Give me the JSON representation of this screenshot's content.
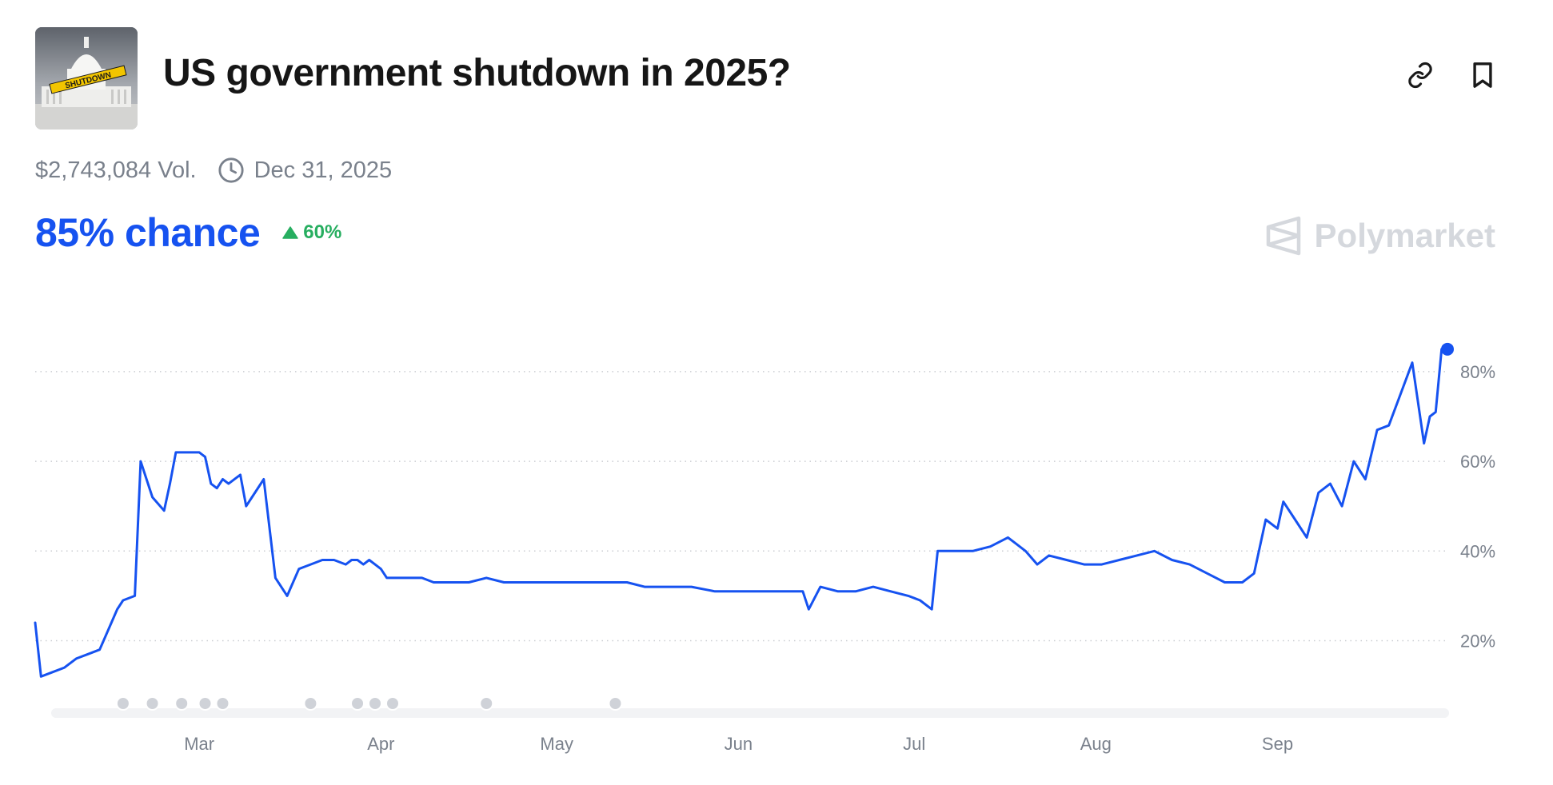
{
  "market": {
    "title": "US government shutdown in 2025?",
    "volume": "$2,743,084 Vol.",
    "end_date": "Dec 31, 2025",
    "chance": "85% chance",
    "change": "60%",
    "brand": "Polymarket",
    "thumbnail_banner": "SHUTDOWN"
  },
  "icons": {
    "link": "link-icon",
    "bookmark": "bookmark-icon",
    "clock": "clock-icon",
    "delta": "triangle-up-icon",
    "brand": "polymarket-logo-icon"
  },
  "colors": {
    "line": "#1652f0",
    "chance": "#1652f0",
    "positive": "#27ae60",
    "muted": "#7a818c",
    "marker": "#cfd2d8"
  },
  "chart_data": {
    "type": "line",
    "title": "",
    "xlabel": "",
    "ylabel": "",
    "x_tick_labels": [
      "Mar",
      "Apr",
      "May",
      "Jun",
      "Jul",
      "Aug",
      "Sep"
    ],
    "y_tick_labels": [
      "20%",
      "40%",
      "60%",
      "80%"
    ],
    "y_ticks": [
      20,
      40,
      60,
      80
    ],
    "ylim": [
      6,
      88
    ],
    "xlim": [
      "2025-02-01",
      "2025-09-30"
    ],
    "grid": "horizontal-dotted",
    "x_tick_dates": [
      "2025-03-01",
      "2025-04-01",
      "2025-05-01",
      "2025-06-01",
      "2025-07-01",
      "2025-08-01",
      "2025-09-01"
    ],
    "event_markers": [
      "2025-02-16",
      "2025-02-21",
      "2025-02-26",
      "2025-03-02",
      "2025-03-05",
      "2025-03-20",
      "2025-03-28",
      "2025-03-31",
      "2025-04-03",
      "2025-04-19",
      "2025-05-11"
    ],
    "series": [
      {
        "x": [
          "2025-02-01",
          "2025-02-02",
          "2025-02-04",
          "2025-02-06",
          "2025-02-08",
          "2025-02-10",
          "2025-02-12",
          "2025-02-14",
          "2025-02-15",
          "2025-02-16",
          "2025-02-18",
          "2025-02-19",
          "2025-02-21",
          "2025-02-23",
          "2025-02-24",
          "2025-02-25",
          "2025-02-26",
          "2025-02-27",
          "2025-02-28",
          "2025-03-01",
          "2025-03-02",
          "2025-03-03",
          "2025-03-04",
          "2025-03-05",
          "2025-03-06",
          "2025-03-08",
          "2025-03-09",
          "2025-03-10",
          "2025-03-12",
          "2025-03-14",
          "2025-03-16",
          "2025-03-18",
          "2025-03-20",
          "2025-03-22",
          "2025-03-24",
          "2025-03-26",
          "2025-03-27",
          "2025-03-28",
          "2025-03-29",
          "2025-03-30",
          "2025-03-31",
          "2025-04-01",
          "2025-04-02",
          "2025-04-04",
          "2025-04-06",
          "2025-04-08",
          "2025-04-10",
          "2025-04-13",
          "2025-04-16",
          "2025-04-19",
          "2025-04-22",
          "2025-04-25",
          "2025-04-28",
          "2025-05-01",
          "2025-05-04",
          "2025-05-07",
          "2025-05-10",
          "2025-05-13",
          "2025-05-16",
          "2025-05-20",
          "2025-05-24",
          "2025-05-28",
          "2025-06-01",
          "2025-06-04",
          "2025-06-07",
          "2025-06-10",
          "2025-06-12",
          "2025-06-13",
          "2025-06-15",
          "2025-06-18",
          "2025-06-21",
          "2025-06-24",
          "2025-06-27",
          "2025-06-30",
          "2025-07-02",
          "2025-07-04",
          "2025-07-05",
          "2025-07-06",
          "2025-07-08",
          "2025-07-11",
          "2025-07-14",
          "2025-07-17",
          "2025-07-20",
          "2025-07-22",
          "2025-07-24",
          "2025-07-27",
          "2025-07-30",
          "2025-08-02",
          "2025-08-05",
          "2025-08-08",
          "2025-08-11",
          "2025-08-14",
          "2025-08-17",
          "2025-08-20",
          "2025-08-23",
          "2025-08-26",
          "2025-08-28",
          "2025-08-30",
          "2025-09-01",
          "2025-09-02",
          "2025-09-04",
          "2025-09-06",
          "2025-09-08",
          "2025-09-10",
          "2025-09-12",
          "2025-09-14",
          "2025-09-16",
          "2025-09-18",
          "2025-09-20",
          "2025-09-22",
          "2025-09-24",
          "2025-09-26",
          "2025-09-27",
          "2025-09-28",
          "2025-09-29",
          "2025-09-30"
        ],
        "y": [
          24,
          12,
          13,
          14,
          16,
          17,
          18,
          24,
          27,
          29,
          30,
          60,
          52,
          49,
          55,
          62,
          62,
          62,
          62,
          62,
          61,
          55,
          54,
          56,
          55,
          57,
          50,
          52,
          56,
          34,
          30,
          36,
          37,
          38,
          38,
          37,
          38,
          38,
          37,
          38,
          37,
          36,
          34,
          34,
          34,
          34,
          33,
          33,
          33,
          34,
          33,
          33,
          33,
          33,
          33,
          33,
          33,
          33,
          32,
          32,
          32,
          31,
          31,
          31,
          31,
          31,
          31,
          27,
          32,
          31,
          31,
          32,
          31,
          30,
          29,
          27,
          40,
          40,
          40,
          40,
          41,
          43,
          40,
          37,
          39,
          38,
          37,
          37,
          38,
          39,
          40,
          38,
          37,
          35,
          33,
          33,
          35,
          47,
          45,
          51,
          47,
          43,
          53,
          55,
          50,
          60,
          56,
          67,
          68,
          75,
          82,
          64,
          70,
          71,
          85,
          85
        ]
      }
    ]
  }
}
